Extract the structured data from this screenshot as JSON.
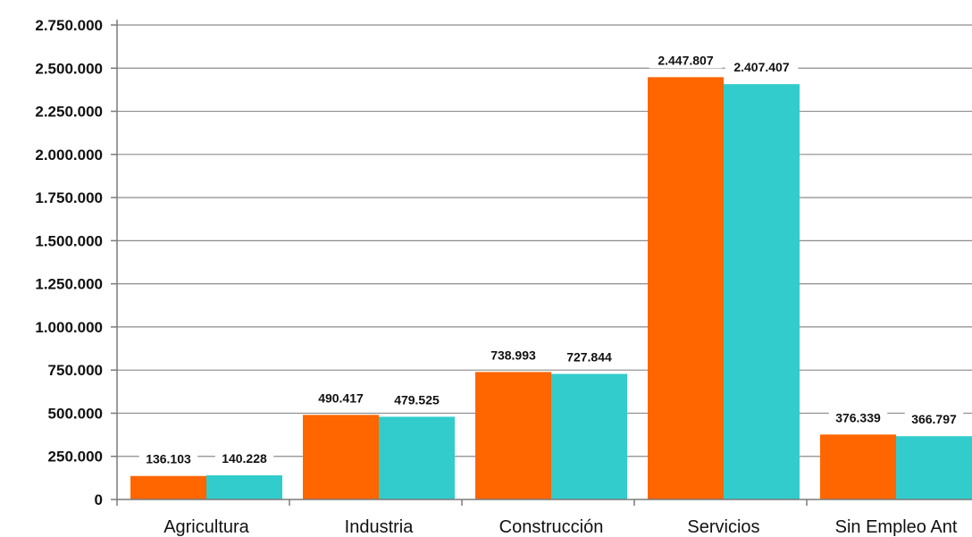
{
  "chart_data": {
    "type": "bar",
    "title": "",
    "xlabel": "",
    "ylabel": "",
    "categories": [
      "Agricultura",
      "Industria",
      "Construcción",
      "Servicios",
      "Sin Empleo Ant"
    ],
    "series": [
      {
        "color": "#ff6600",
        "values": [
          136103,
          490417,
          738993,
          2447807,
          376339
        ],
        "labels": [
          "136.103",
          "490.417",
          "738.993",
          "2.447.807",
          "376.339"
        ]
      },
      {
        "color": "#33cccc",
        "values": [
          140228,
          479525,
          727844,
          2407407,
          366797
        ],
        "labels": [
          "140.228",
          "479.525",
          "727.844",
          "2.407.407",
          "366.797"
        ]
      }
    ],
    "ylim": [
      0,
      2750000
    ],
    "yticks": [
      0,
      250000,
      500000,
      750000,
      1000000,
      1250000,
      1500000,
      1750000,
      2000000,
      2250000,
      2500000,
      2750000
    ],
    "ytick_labels": [
      "0",
      "250.000",
      "500.000",
      "750.000",
      "1.000.000",
      "1.250.000",
      "1.500.000",
      "1.750.000",
      "2.000.000",
      "2.250.000",
      "2.500.000",
      "2.750.000"
    ],
    "grid": true,
    "legend": "none"
  }
}
